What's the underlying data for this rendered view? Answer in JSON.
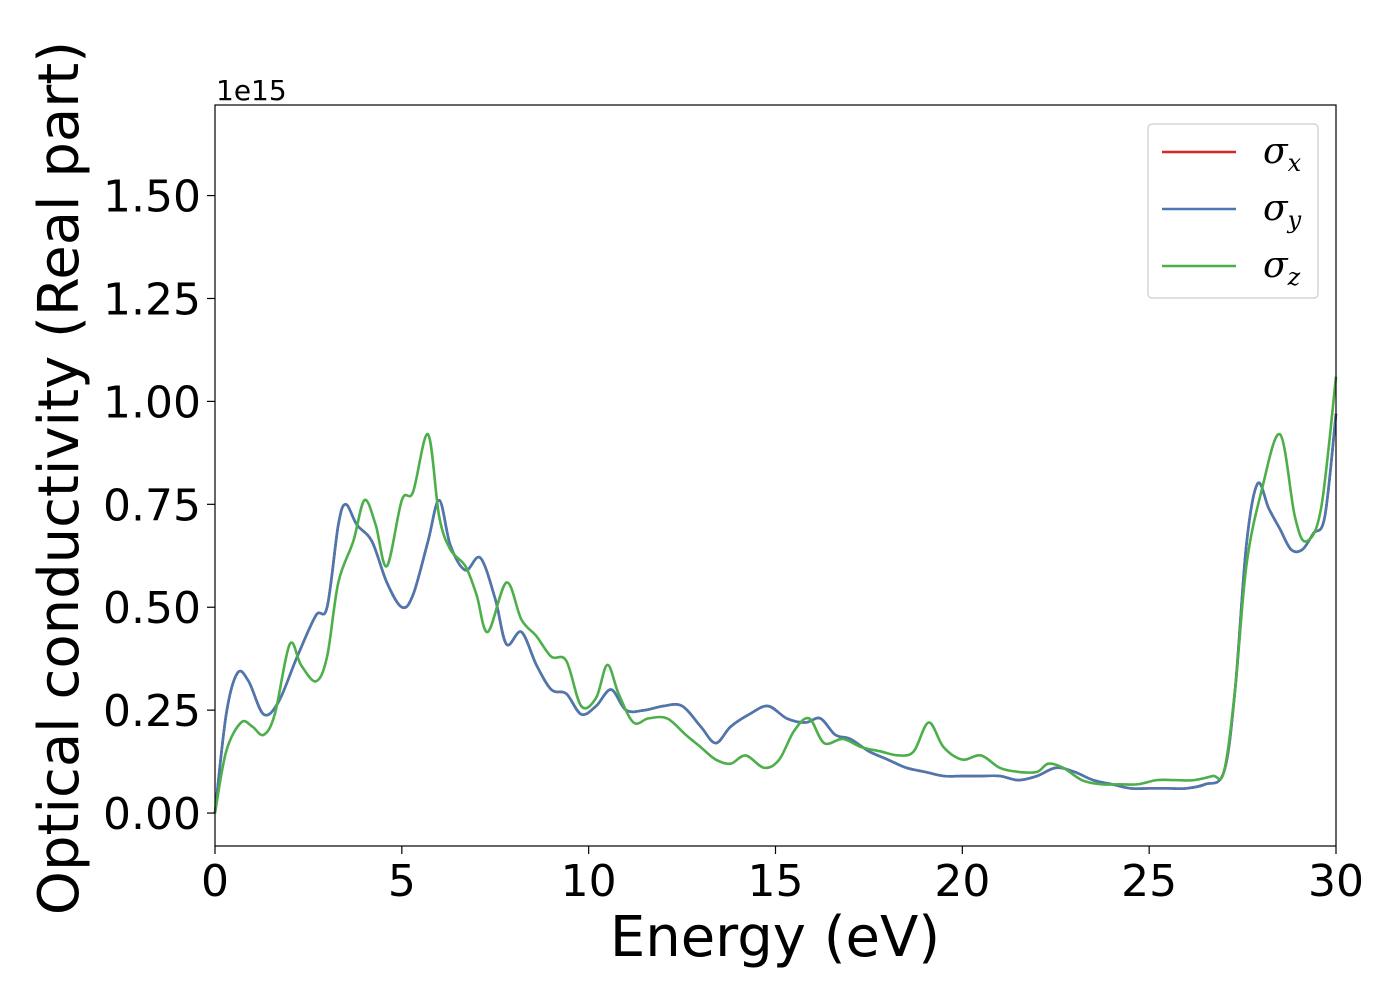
{
  "chart_data": {
    "type": "line",
    "xlabel": "Energy (eV)",
    "ylabel": "Optical conductivity (Real part)",
    "y_offset_label": "1e15",
    "xlim": [
      0,
      30
    ],
    "ylim": [
      -0.08,
      1.72
    ],
    "x_ticks": [
      0,
      5,
      10,
      15,
      20,
      25,
      30
    ],
    "x_tick_labels": [
      "0",
      "5",
      "10",
      "15",
      "20",
      "25",
      "30"
    ],
    "y_ticks": [
      0.0,
      0.25,
      0.5,
      0.75,
      1.0,
      1.25,
      1.5
    ],
    "y_tick_labels": [
      "0.00",
      "0.25",
      "0.50",
      "0.75",
      "1.00",
      "1.25",
      "1.50"
    ],
    "grid": false,
    "legend_position": "top-right",
    "legend": [
      {
        "symbol": "σ",
        "sub": "x",
        "color": "#d62728"
      },
      {
        "symbol": "σ",
        "sub": "y",
        "color": "#4a78b0"
      },
      {
        "symbol": "σ",
        "sub": "z",
        "color": "#4daf4a"
      }
    ],
    "series": [
      {
        "color": "#d62728",
        "points": [
          [
            0,
            0
          ],
          [
            0.3,
            0.24
          ],
          [
            0.6,
            0.34
          ],
          [
            0.9,
            0.32
          ],
          [
            1.3,
            0.24
          ],
          [
            1.7,
            0.27
          ],
          [
            2.2,
            0.38
          ],
          [
            2.7,
            0.48
          ],
          [
            3.0,
            0.5
          ],
          [
            3.3,
            0.7
          ],
          [
            3.5,
            0.75
          ],
          [
            3.8,
            0.7
          ],
          [
            4.2,
            0.66
          ],
          [
            4.6,
            0.56
          ],
          [
            5.0,
            0.5
          ],
          [
            5.3,
            0.53
          ],
          [
            5.7,
            0.66
          ],
          [
            6.0,
            0.76
          ],
          [
            6.3,
            0.65
          ],
          [
            6.7,
            0.59
          ],
          [
            7.1,
            0.62
          ],
          [
            7.5,
            0.52
          ],
          [
            7.8,
            0.41
          ],
          [
            8.2,
            0.44
          ],
          [
            8.6,
            0.36
          ],
          [
            9.0,
            0.3
          ],
          [
            9.4,
            0.29
          ],
          [
            9.8,
            0.24
          ],
          [
            10.2,
            0.26
          ],
          [
            10.6,
            0.3
          ],
          [
            11.0,
            0.25
          ],
          [
            11.5,
            0.25
          ],
          [
            12.0,
            0.26
          ],
          [
            12.5,
            0.26
          ],
          [
            13.0,
            0.21
          ],
          [
            13.4,
            0.17
          ],
          [
            13.8,
            0.21
          ],
          [
            14.3,
            0.24
          ],
          [
            14.8,
            0.26
          ],
          [
            15.3,
            0.23
          ],
          [
            15.8,
            0.22
          ],
          [
            16.2,
            0.23
          ],
          [
            16.6,
            0.19
          ],
          [
            17.0,
            0.18
          ],
          [
            17.5,
            0.15
          ],
          [
            18.0,
            0.13
          ],
          [
            18.5,
            0.11
          ],
          [
            19.0,
            0.1
          ],
          [
            19.5,
            0.09
          ],
          [
            20.0,
            0.09
          ],
          [
            20.5,
            0.09
          ],
          [
            21.0,
            0.09
          ],
          [
            21.5,
            0.08
          ],
          [
            22.0,
            0.09
          ],
          [
            22.5,
            0.11
          ],
          [
            23.0,
            0.1
          ],
          [
            23.5,
            0.08
          ],
          [
            24.0,
            0.07
          ],
          [
            24.5,
            0.06
          ],
          [
            25.0,
            0.06
          ],
          [
            25.5,
            0.06
          ],
          [
            26.0,
            0.06
          ],
          [
            26.5,
            0.07
          ],
          [
            27.0,
            0.1
          ],
          [
            27.3,
            0.3
          ],
          [
            27.6,
            0.65
          ],
          [
            27.9,
            0.8
          ],
          [
            28.2,
            0.74
          ],
          [
            28.5,
            0.69
          ],
          [
            28.8,
            0.64
          ],
          [
            29.1,
            0.64
          ],
          [
            29.4,
            0.68
          ],
          [
            29.7,
            0.72
          ],
          [
            30.0,
            0.97
          ]
        ]
      },
      {
        "color": "#4a78b0",
        "points": [
          [
            0,
            0
          ],
          [
            0.3,
            0.24
          ],
          [
            0.6,
            0.34
          ],
          [
            0.9,
            0.32
          ],
          [
            1.3,
            0.24
          ],
          [
            1.7,
            0.27
          ],
          [
            2.2,
            0.38
          ],
          [
            2.7,
            0.48
          ],
          [
            3.0,
            0.5
          ],
          [
            3.3,
            0.7
          ],
          [
            3.5,
            0.75
          ],
          [
            3.8,
            0.7
          ],
          [
            4.2,
            0.66
          ],
          [
            4.6,
            0.56
          ],
          [
            5.0,
            0.5
          ],
          [
            5.3,
            0.53
          ],
          [
            5.7,
            0.66
          ],
          [
            6.0,
            0.76
          ],
          [
            6.3,
            0.65
          ],
          [
            6.7,
            0.59
          ],
          [
            7.1,
            0.62
          ],
          [
            7.5,
            0.52
          ],
          [
            7.8,
            0.41
          ],
          [
            8.2,
            0.44
          ],
          [
            8.6,
            0.36
          ],
          [
            9.0,
            0.3
          ],
          [
            9.4,
            0.29
          ],
          [
            9.8,
            0.24
          ],
          [
            10.2,
            0.26
          ],
          [
            10.6,
            0.3
          ],
          [
            11.0,
            0.25
          ],
          [
            11.5,
            0.25
          ],
          [
            12.0,
            0.26
          ],
          [
            12.5,
            0.26
          ],
          [
            13.0,
            0.21
          ],
          [
            13.4,
            0.17
          ],
          [
            13.8,
            0.21
          ],
          [
            14.3,
            0.24
          ],
          [
            14.8,
            0.26
          ],
          [
            15.3,
            0.23
          ],
          [
            15.8,
            0.22
          ],
          [
            16.2,
            0.23
          ],
          [
            16.6,
            0.19
          ],
          [
            17.0,
            0.18
          ],
          [
            17.5,
            0.15
          ],
          [
            18.0,
            0.13
          ],
          [
            18.5,
            0.11
          ],
          [
            19.0,
            0.1
          ],
          [
            19.5,
            0.09
          ],
          [
            20.0,
            0.09
          ],
          [
            20.5,
            0.09
          ],
          [
            21.0,
            0.09
          ],
          [
            21.5,
            0.08
          ],
          [
            22.0,
            0.09
          ],
          [
            22.5,
            0.11
          ],
          [
            23.0,
            0.1
          ],
          [
            23.5,
            0.08
          ],
          [
            24.0,
            0.07
          ],
          [
            24.5,
            0.06
          ],
          [
            25.0,
            0.06
          ],
          [
            25.5,
            0.06
          ],
          [
            26.0,
            0.06
          ],
          [
            26.5,
            0.07
          ],
          [
            27.0,
            0.1
          ],
          [
            27.3,
            0.3
          ],
          [
            27.6,
            0.65
          ],
          [
            27.9,
            0.8
          ],
          [
            28.2,
            0.74
          ],
          [
            28.5,
            0.69
          ],
          [
            28.8,
            0.64
          ],
          [
            29.1,
            0.64
          ],
          [
            29.4,
            0.68
          ],
          [
            29.7,
            0.72
          ],
          [
            30.0,
            0.97
          ]
        ]
      },
      {
        "color": "#4daf4a",
        "points": [
          [
            0,
            0
          ],
          [
            0.3,
            0.15
          ],
          [
            0.7,
            0.22
          ],
          [
            1.0,
            0.21
          ],
          [
            1.3,
            0.19
          ],
          [
            1.6,
            0.24
          ],
          [
            2.0,
            0.41
          ],
          [
            2.3,
            0.36
          ],
          [
            2.7,
            0.32
          ],
          [
            3.0,
            0.38
          ],
          [
            3.3,
            0.56
          ],
          [
            3.7,
            0.66
          ],
          [
            4.0,
            0.76
          ],
          [
            4.3,
            0.7
          ],
          [
            4.6,
            0.6
          ],
          [
            5.0,
            0.76
          ],
          [
            5.3,
            0.78
          ],
          [
            5.7,
            0.92
          ],
          [
            6.0,
            0.72
          ],
          [
            6.3,
            0.64
          ],
          [
            6.7,
            0.6
          ],
          [
            7.0,
            0.53
          ],
          [
            7.3,
            0.44
          ],
          [
            7.8,
            0.56
          ],
          [
            8.2,
            0.47
          ],
          [
            8.6,
            0.43
          ],
          [
            9.0,
            0.38
          ],
          [
            9.4,
            0.37
          ],
          [
            9.8,
            0.26
          ],
          [
            10.2,
            0.28
          ],
          [
            10.5,
            0.36
          ],
          [
            10.8,
            0.29
          ],
          [
            11.2,
            0.22
          ],
          [
            11.6,
            0.23
          ],
          [
            12.1,
            0.23
          ],
          [
            12.6,
            0.19
          ],
          [
            13.0,
            0.16
          ],
          [
            13.4,
            0.13
          ],
          [
            13.8,
            0.12
          ],
          [
            14.2,
            0.14
          ],
          [
            14.7,
            0.11
          ],
          [
            15.1,
            0.13
          ],
          [
            15.5,
            0.2
          ],
          [
            15.9,
            0.23
          ],
          [
            16.3,
            0.17
          ],
          [
            16.8,
            0.18
          ],
          [
            17.3,
            0.16
          ],
          [
            17.8,
            0.15
          ],
          [
            18.3,
            0.14
          ],
          [
            18.7,
            0.15
          ],
          [
            19.1,
            0.22
          ],
          [
            19.5,
            0.16
          ],
          [
            20.0,
            0.13
          ],
          [
            20.5,
            0.14
          ],
          [
            21.0,
            0.11
          ],
          [
            21.5,
            0.1
          ],
          [
            22.0,
            0.1
          ],
          [
            22.3,
            0.12
          ],
          [
            22.7,
            0.11
          ],
          [
            23.2,
            0.08
          ],
          [
            23.7,
            0.07
          ],
          [
            24.2,
            0.07
          ],
          [
            24.7,
            0.07
          ],
          [
            25.2,
            0.08
          ],
          [
            25.7,
            0.08
          ],
          [
            26.2,
            0.08
          ],
          [
            26.7,
            0.09
          ],
          [
            27.0,
            0.1
          ],
          [
            27.3,
            0.3
          ],
          [
            27.6,
            0.6
          ],
          [
            28.0,
            0.78
          ],
          [
            28.5,
            0.92
          ],
          [
            28.9,
            0.72
          ],
          [
            29.2,
            0.66
          ],
          [
            29.6,
            0.74
          ],
          [
            30.0,
            1.06
          ]
        ]
      }
    ]
  }
}
